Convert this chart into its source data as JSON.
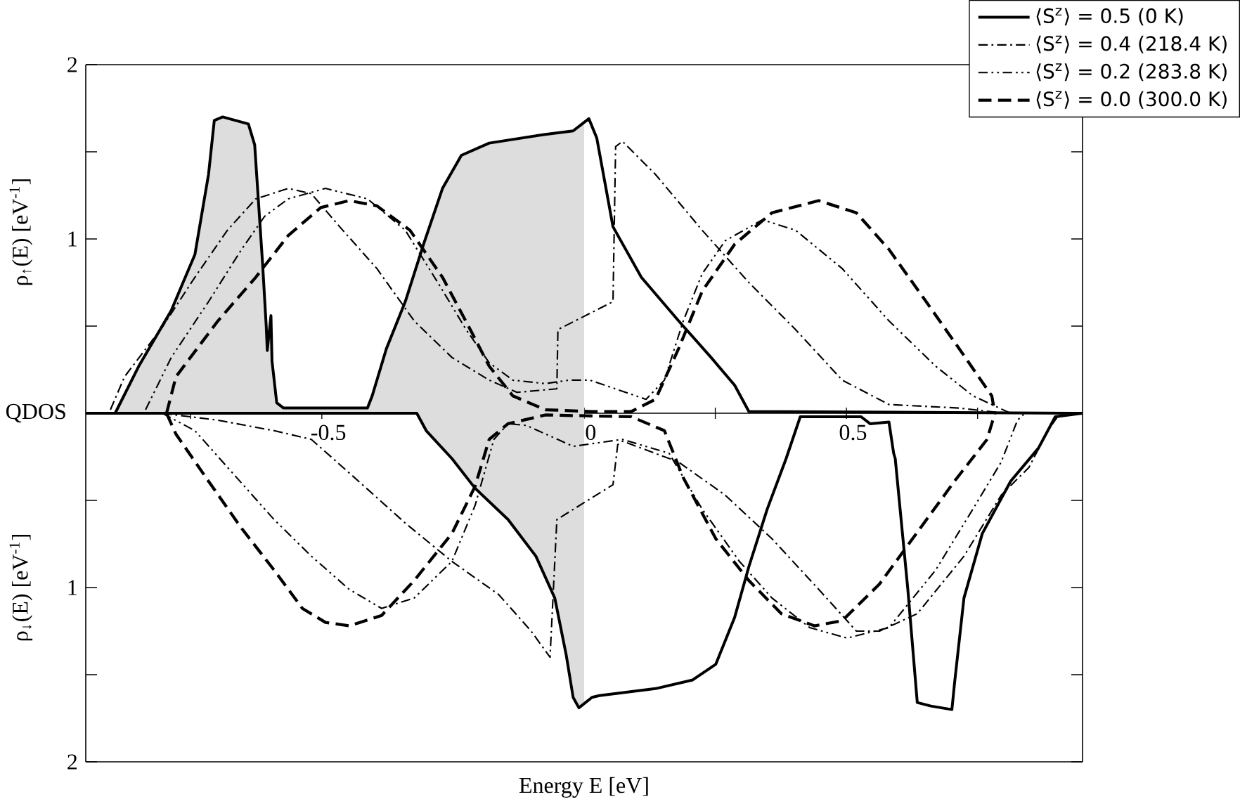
{
  "chart_data": {
    "type": "line",
    "xlabel": "Energy E [eV]",
    "ylabel": "QDOS",
    "annotations": [
      "ρ$_{↑}$(E) [eV$^{-1}$]",
      "ρ$_{↓}$(E) [eV$^{-1}$]"
    ],
    "xlim": [
      -0.95,
      0.95
    ],
    "ylim": [
      -2,
      2
    ],
    "xticks": [
      {
        "value": -0.75,
        "label": null
      },
      -0.5,
      {
        "value": -0.25,
        "label": null
      },
      0,
      {
        "value": 0.25,
        "label": null
      },
      0.5,
      {
        "value": 0.75,
        "label": null
      }
    ],
    "yticks": [
      {
        "value": -2,
        "label": "2"
      },
      {
        "value": -1.5,
        "label": null
      },
      {
        "value": -1,
        "label": "1"
      },
      {
        "value": -0.5,
        "label": null
      },
      {
        "value": 0,
        "label": null
      },
      {
        "value": 0.5,
        "label": null
      },
      1,
      {
        "value": 1.5,
        "label": null
      },
      2
    ],
    "legend": "top right",
    "marker": "none",
    "series": [
      {
        "type": "area",
        "color": "#dddddd",
        "x": [
          -0.894,
          -0.849,
          -0.787,
          -0.742,
          -0.716,
          -0.705,
          -0.689,
          -0.64,
          -0.628,
          -0.613,
          -0.606,
          -0.604,
          -0.597,
          -0.595,
          -0.586,
          -0.573,
          -0.52,
          -0.413,
          -0.404,
          -0.377,
          -0.341,
          -0.306,
          -0.27,
          -0.234,
          -0.181,
          -0.074,
          -0.021,
          0
        ],
        "values": [
          0,
          0.27,
          0.59,
          0.91,
          1.37,
          1.68,
          1.7,
          1.66,
          1.54,
          0.86,
          0.5,
          0.36,
          0.56,
          0.3,
          0.06,
          0.03,
          0.03,
          0.03,
          0.1,
          0.37,
          0.64,
          0.97,
          1.29,
          1.48,
          1.55,
          1.6,
          1.62,
          1.67
        ]
      },
      {
        "type": "area",
        "color": "#dddddd",
        "x": [
          -0.319,
          -0.301,
          -0.252,
          -0.208,
          -0.145,
          -0.092,
          -0.056,
          -0.034,
          -0.021,
          -0.01,
          0
        ],
        "values": [
          0,
          -0.1,
          -0.26,
          -0.43,
          -0.61,
          -0.82,
          -1.06,
          -1.39,
          -1.63,
          -1.69,
          -1.67
        ]
      },
      {
        "name": "⟨S$^{z}$⟩ = 0.5  (0 K)",
        "color": "#000000",
        "line_style": "solid",
        "x": [
          -0.95,
          -0.894,
          -0.849,
          -0.787,
          -0.742,
          -0.716,
          -0.705,
          -0.689,
          -0.64,
          -0.628,
          -0.613,
          -0.606,
          -0.604,
          -0.597,
          -0.595,
          -0.586,
          -0.573,
          -0.52,
          -0.413,
          -0.404,
          -0.377,
          -0.341,
          -0.306,
          -0.27,
          -0.234,
          -0.181,
          -0.074,
          -0.021,
          0.009,
          0.024,
          0.055,
          0.109,
          0.18,
          0.242,
          0.287,
          0.314,
          0.95,
          null,
          -0.95,
          -0.319,
          -0.301,
          -0.252,
          -0.208,
          -0.145,
          -0.092,
          -0.056,
          -0.034,
          -0.021,
          -0.01,
          0.015,
          0.029,
          0.136,
          0.207,
          0.251,
          0.287,
          0.314,
          0.349,
          0.385,
          0.412,
          0.528,
          0.545,
          0.581,
          0.59,
          0.593,
          0.617,
          0.635,
          0.661,
          0.701,
          0.706,
          0.724,
          0.759,
          0.813,
          0.866,
          0.898,
          0.95
        ],
        "values": [
          0,
          0,
          0.27,
          0.59,
          0.91,
          1.37,
          1.68,
          1.7,
          1.66,
          1.54,
          0.86,
          0.5,
          0.36,
          0.56,
          0.3,
          0.06,
          0.03,
          0.03,
          0.03,
          0.1,
          0.37,
          0.64,
          0.97,
          1.29,
          1.48,
          1.55,
          1.6,
          1.62,
          1.69,
          1.58,
          1.07,
          0.78,
          0.53,
          0.32,
          0.16,
          0.01,
          0,
          null,
          0,
          0,
          -0.1,
          -0.26,
          -0.43,
          -0.61,
          -0.82,
          -1.06,
          -1.39,
          -1.63,
          -1.69,
          -1.63,
          -1.62,
          -1.58,
          -1.53,
          -1.44,
          -1.17,
          -0.88,
          -0.55,
          -0.26,
          -0.02,
          -0.02,
          -0.06,
          -0.05,
          -0.23,
          -0.26,
          -1.01,
          -1.66,
          -1.68,
          -1.7,
          -1.55,
          -1.06,
          -0.69,
          -0.39,
          -0.2,
          -0.02,
          0
        ]
      },
      {
        "name": "⟨S$^{z}$⟩ = 0.4  (218.4 K)",
        "color": "#000000",
        "line_style": "dashdot",
        "x": [
          -0.903,
          -0.876,
          -0.805,
          -0.742,
          -0.68,
          -0.626,
          -0.564,
          -0.52,
          -0.466,
          -0.395,
          -0.324,
          -0.252,
          -0.181,
          -0.128,
          -0.052,
          -0.05,
          0.055,
          0.06,
          0.073,
          0.136,
          0.225,
          0.314,
          0.403,
          0.492,
          0.581,
          0.714,
          0.803,
          null,
          -0.804,
          -0.698,
          -0.591,
          -0.52,
          -0.43,
          -0.341,
          -0.252,
          -0.163,
          -0.101,
          -0.065,
          -0.052,
          0.055,
          0.064,
          0.073,
          0.18,
          0.269,
          0.358,
          0.447,
          0.519,
          0.563,
          0.635,
          0.724,
          0.795,
          0.848,
          0.884,
          0.907
        ],
        "values": [
          0.02,
          0.21,
          0.49,
          0.78,
          1.05,
          1.23,
          1.29,
          1.26,
          1.07,
          0.83,
          0.53,
          0.32,
          0.19,
          0.12,
          0.14,
          0.48,
          0.64,
          1.53,
          1.56,
          1.37,
          1.05,
          0.75,
          0.48,
          0.19,
          0.05,
          0.03,
          0,
          null,
          0,
          -0.04,
          -0.1,
          -0.15,
          -0.39,
          -0.63,
          -0.85,
          -1.04,
          -1.25,
          -1.4,
          -0.61,
          -0.41,
          -0.18,
          -0.16,
          -0.28,
          -0.47,
          -0.72,
          -1.01,
          -1.25,
          -1.25,
          -1.15,
          -0.82,
          -0.47,
          -0.31,
          -0.1,
          0
        ]
      },
      {
        "name": "⟨S$^{z}$⟩ = 0.2  (283.8 K)",
        "color": "#000000",
        "line_style": "dashdotdot",
        "x": [
          -0.836,
          -0.787,
          -0.716,
          -0.653,
          -0.609,
          -0.564,
          -0.493,
          -0.413,
          -0.341,
          -0.279,
          -0.225,
          -0.181,
          -0.136,
          -0.074,
          -0.029,
          0.011,
          0.118,
          0.153,
          0.189,
          0.225,
          0.269,
          0.34,
          0.403,
          0.492,
          0.581,
          0.67,
          0.741,
          0.813,
          null,
          -0.804,
          -0.742,
          -0.671,
          -0.591,
          -0.52,
          -0.448,
          -0.386,
          -0.324,
          -0.252,
          -0.208,
          -0.172,
          -0.145,
          -0.11,
          -0.021,
          0.073,
          0.162,
          0.225,
          0.296,
          0.358,
          0.43,
          0.501,
          0.581,
          0.67,
          0.741,
          0.795,
          0.826,
          0.84
        ],
        "values": [
          0.02,
          0.32,
          0.64,
          0.94,
          1.13,
          1.23,
          1.29,
          1.23,
          1.05,
          0.75,
          0.48,
          0.29,
          0.19,
          0.17,
          0.19,
          0.19,
          0.08,
          0.19,
          0.53,
          0.8,
          0.99,
          1.11,
          1.05,
          0.83,
          0.53,
          0.27,
          0.1,
          0,
          null,
          0,
          -0.1,
          -0.34,
          -0.61,
          -0.82,
          -1.01,
          -1.12,
          -1.06,
          -0.85,
          -0.53,
          -0.15,
          -0.06,
          -0.07,
          -0.19,
          -0.15,
          -0.23,
          -0.55,
          -0.85,
          -1.06,
          -1.23,
          -1.29,
          -1.23,
          -0.9,
          -0.55,
          -0.28,
          -0.04,
          0
        ]
      },
      {
        "name": "⟨S$^{z}$⟩ = 0.0  (300.0 K)",
        "color": "#000000",
        "line_style": "dashed",
        "x": [
          -0.796,
          -0.778,
          -0.698,
          -0.626,
          -0.564,
          -0.502,
          -0.448,
          -0.395,
          -0.332,
          -0.27,
          -0.217,
          -0.181,
          -0.136,
          -0.074,
          0.014,
          0.09,
          0.136,
          0.18,
          0.225,
          0.287,
          0.358,
          0.447,
          0.519,
          0.581,
          0.652,
          0.715,
          0.777,
          0.783,
          null,
          -0.796,
          -0.778,
          -0.716,
          -0.653,
          -0.591,
          -0.537,
          -0.493,
          -0.448,
          -0.386,
          -0.324,
          -0.252,
          -0.208,
          -0.181,
          -0.145,
          -0.074,
          0.09,
          0.153,
          0.189,
          0.251,
          0.314,
          0.376,
          0.439,
          0.492,
          0.563,
          0.626,
          0.706,
          0.768,
          0.783
        ],
        "values": [
          0,
          0.21,
          0.53,
          0.78,
          1.02,
          1.18,
          1.22,
          1.19,
          1.05,
          0.78,
          0.48,
          0.27,
          0.1,
          0.02,
          0.01,
          0.01,
          0.08,
          0.37,
          0.7,
          0.97,
          1.15,
          1.22,
          1.15,
          0.94,
          0.64,
          0.37,
          0.1,
          0,
          null,
          0,
          -0.12,
          -0.39,
          -0.66,
          -0.9,
          -1.12,
          -1.2,
          -1.22,
          -1.16,
          -0.96,
          -0.69,
          -0.42,
          -0.15,
          -0.06,
          -0.01,
          -0.02,
          -0.1,
          -0.37,
          -0.72,
          -0.96,
          -1.15,
          -1.22,
          -1.19,
          -0.98,
          -0.72,
          -0.39,
          -0.15,
          0
        ]
      }
    ]
  }
}
